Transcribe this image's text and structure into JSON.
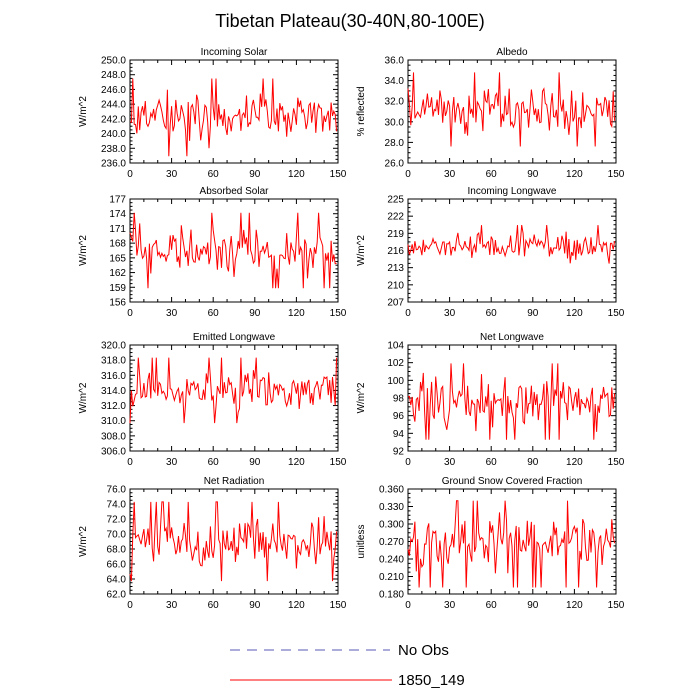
{
  "title": "Tibetan Plateau(30-40N,80-100E)",
  "legend": [
    {
      "label": "No Obs",
      "color": "#5a5ab4",
      "dashed": true
    },
    {
      "label": "1850_149",
      "color": "#ff0000",
      "dashed": false
    }
  ],
  "chart_data": [
    {
      "type": "line",
      "title": "Incoming Solar",
      "ylabel": "W/m^2",
      "xlim": [
        0,
        150
      ],
      "xticks": [
        0,
        30,
        60,
        90,
        120,
        150
      ],
      "ylim": [
        236,
        250
      ],
      "yticks": [
        "236.0",
        "238.0",
        "240.0",
        "242.0",
        "244.0",
        "246.0",
        "248.0",
        "250.0"
      ],
      "series": [
        {
          "name": "1850_149",
          "mean": 242.2,
          "amp": 2.2,
          "min": 236.7,
          "max": 248.1,
          "seed": 11,
          "x": [
            0,
            149
          ]
        }
      ]
    },
    {
      "type": "line",
      "title": "Albedo",
      "ylabel": "% reflected",
      "xlim": [
        0,
        150
      ],
      "xticks": [
        0,
        30,
        60,
        90,
        120,
        150
      ],
      "ylim": [
        26,
        36
      ],
      "yticks": [
        "26.0",
        "28.0",
        "30.0",
        "32.0",
        "34.0",
        "36.0"
      ],
      "series": [
        {
          "name": "1850_149",
          "mean": 31.2,
          "amp": 1.5,
          "min": 27.0,
          "max": 34.8,
          "seed": 23,
          "x": [
            0,
            149
          ]
        }
      ]
    },
    {
      "type": "line",
      "title": "Absorbed Solar",
      "ylabel": "W/m^2",
      "xlim": [
        0,
        150
      ],
      "xticks": [
        0,
        30,
        60,
        90,
        120,
        150
      ],
      "ylim": [
        156,
        177
      ],
      "yticks": [
        "156",
        "159",
        "162",
        "165",
        "168",
        "171",
        "174",
        "177"
      ],
      "series": [
        {
          "name": "1850_149",
          "mean": 166.5,
          "amp": 3.2,
          "min": 158.2,
          "max": 176.0,
          "seed": 37,
          "x": [
            0,
            149
          ]
        }
      ]
    },
    {
      "type": "line",
      "title": "Incoming Longwave",
      "ylabel": "W/m^2",
      "xlim": [
        0,
        150
      ],
      "xticks": [
        0,
        30,
        60,
        90,
        120,
        150
      ],
      "ylim": [
        207,
        225
      ],
      "yticks": [
        "207",
        "210",
        "213",
        "216",
        "219",
        "222",
        "225"
      ],
      "series": [
        {
          "name": "1850_149",
          "mean": 216.6,
          "amp": 1.6,
          "min": 210.2,
          "max": 222.0,
          "seed": 41,
          "x": [
            0,
            149
          ]
        }
      ]
    },
    {
      "type": "line",
      "title": "Emitted Longwave",
      "ylabel": "W/m^2",
      "xlim": [
        0,
        150
      ],
      "xticks": [
        0,
        30,
        60,
        90,
        120,
        150
      ],
      "ylim": [
        306,
        320
      ],
      "yticks": [
        "306.0",
        "308.0",
        "310.0",
        "312.0",
        "314.0",
        "316.0",
        "318.0",
        "320.0"
      ],
      "series": [
        {
          "name": "1850_149",
          "mean": 314.0,
          "amp": 1.8,
          "min": 306.6,
          "max": 319.0,
          "seed": 53,
          "x": [
            0,
            149
          ]
        }
      ]
    },
    {
      "type": "line",
      "title": "Net Longwave",
      "ylabel": "W/m^2",
      "xlim": [
        0,
        150
      ],
      "xticks": [
        0,
        30,
        60,
        90,
        120,
        150
      ],
      "ylim": [
        92,
        104
      ],
      "yticks": [
        "92",
        "94",
        "96",
        "98",
        "100",
        "102",
        "104"
      ],
      "series": [
        {
          "name": "1850_149",
          "mean": 97.6,
          "amp": 1.8,
          "min": 92.6,
          "max": 102.2,
          "seed": 67,
          "x": [
            0,
            149
          ]
        }
      ]
    },
    {
      "type": "line",
      "title": "Net Radiation",
      "ylabel": "W/m^2",
      "xlim": [
        0,
        150
      ],
      "xticks": [
        0,
        30,
        60,
        90,
        120,
        150
      ],
      "ylim": [
        62,
        76
      ],
      "yticks": [
        "62.0",
        "64.0",
        "66.0",
        "68.0",
        "70.0",
        "72.0",
        "74.0",
        "76.0"
      ],
      "series": [
        {
          "name": "1850_149",
          "mean": 69.0,
          "amp": 2.2,
          "min": 63.2,
          "max": 74.8,
          "seed": 71,
          "x": [
            0,
            149
          ]
        }
      ]
    },
    {
      "type": "line",
      "title": "Ground Snow Covered Fraction",
      "ylabel": "unitless",
      "xlim": [
        0,
        150
      ],
      "xticks": [
        0,
        30,
        60,
        90,
        120,
        150
      ],
      "ylim": [
        0.18,
        0.36
      ],
      "yticks": [
        "0.180",
        "0.210",
        "0.240",
        "0.270",
        "0.300",
        "0.330",
        "0.360"
      ],
      "series": [
        {
          "name": "1850_149",
          "mean": 0.268,
          "amp": 0.032,
          "min": 0.19,
          "max": 0.34,
          "seed": 83,
          "x": [
            0,
            149
          ]
        }
      ]
    }
  ]
}
